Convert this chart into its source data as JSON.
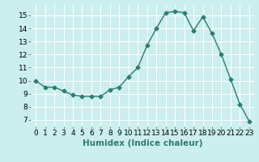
{
  "x": [
    0,
    1,
    2,
    3,
    4,
    5,
    6,
    7,
    8,
    9,
    10,
    11,
    12,
    13,
    14,
    15,
    16,
    17,
    18,
    19,
    20,
    21,
    22,
    23
  ],
  "y": [
    10.0,
    9.5,
    9.5,
    9.2,
    8.9,
    8.8,
    8.8,
    8.8,
    9.3,
    9.5,
    10.3,
    11.0,
    12.7,
    14.0,
    15.2,
    15.3,
    15.2,
    13.8,
    14.9,
    13.6,
    12.0,
    10.1,
    8.2,
    6.9
  ],
  "line_color": "#2e7d6e",
  "marker": "D",
  "marker_size": 2.5,
  "bg_color": "#cbeeee",
  "grid_color": "#ffffff",
  "xlabel": "Humidex (Indice chaleur)",
  "xlim": [
    -0.5,
    23.5
  ],
  "ylim": [
    6.5,
    15.8
  ],
  "yticks": [
    7,
    8,
    9,
    10,
    11,
    12,
    13,
    14,
    15
  ],
  "xticks": [
    0,
    1,
    2,
    3,
    4,
    5,
    6,
    7,
    8,
    9,
    10,
    11,
    12,
    13,
    14,
    15,
    16,
    17,
    18,
    19,
    20,
    21,
    22,
    23
  ],
  "xlabel_fontsize": 7.5,
  "tick_fontsize": 6.5,
  "line_width": 1.0
}
